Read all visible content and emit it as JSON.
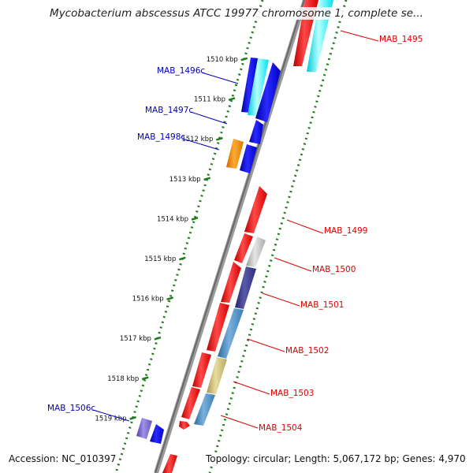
{
  "title": "Mycobacterium abscessus ATCC 19977 chromosome 1, complete se...",
  "footer": {
    "accession_label": "Accession:",
    "accession": "NC_010397",
    "topology_label": "Topology:",
    "topology": "circular",
    "length_label": "Length:",
    "length": "5,067,172 bp",
    "genes_label": "Genes:",
    "genes": "4,970"
  },
  "ticks": [
    {
      "label": "1510 kbp",
      "position_kbp": 1510
    },
    {
      "label": "1511 kbp",
      "position_kbp": 1511
    },
    {
      "label": "1512 kbp",
      "position_kbp": 1512
    },
    {
      "label": "1513 kbp",
      "position_kbp": 1513
    },
    {
      "label": "1514 kbp",
      "position_kbp": 1514
    },
    {
      "label": "1515 kbp",
      "position_kbp": 1515
    },
    {
      "label": "1516 kbp",
      "position_kbp": 1516
    },
    {
      "label": "1517 kbp",
      "position_kbp": 1517
    },
    {
      "label": "1518 kbp",
      "position_kbp": 1518
    },
    {
      "label": "1519 kbp",
      "position_kbp": 1519
    }
  ],
  "labels": {
    "reverse": [
      "MAB_1496c",
      "MAB_1497c",
      "MAB_1498c",
      "MAB_1506c"
    ],
    "forward": [
      "MAB_1495",
      "MAB_1499",
      "MAB_1500",
      "MAB_1501",
      "MAB_1502",
      "MAB_1503",
      "MAB_1504"
    ]
  },
  "colors": {
    "backbone": "#8a8a8a",
    "tick": "#1f7a1f",
    "forward_label": "#dd0000",
    "reverse_label": "#0000bb",
    "cds_red": "#ee1111",
    "cds_blue": "#0000ee",
    "cds_cyan": "#00eeee",
    "cds_orange": "#ee8800",
    "cds_grey": "#bbbbbb",
    "cds_navy": "#333388",
    "cds_steel": "#4682b4",
    "cds_khaki": "#c8b870",
    "cds_lavender": "#7766cc"
  }
}
